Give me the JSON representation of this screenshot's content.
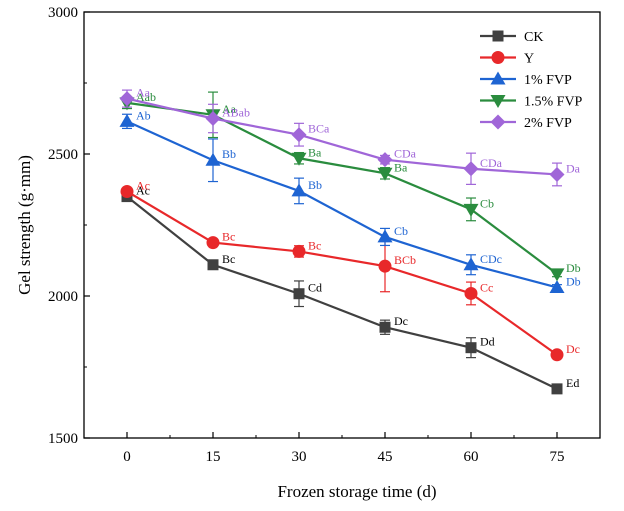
{
  "chart_data": {
    "type": "line",
    "title": "",
    "xlabel": "Frozen storage time (d)",
    "ylabel": "Gel strength (g·mm)",
    "x": [
      0,
      15,
      30,
      45,
      60,
      75
    ],
    "x_tick_labels": [
      "0",
      "15",
      "30",
      "45",
      "60",
      "75"
    ],
    "xlim": [
      -7.5,
      82.5
    ],
    "ylim": [
      1500,
      3000
    ],
    "y_ticks": [
      1500,
      2000,
      2500,
      3000
    ],
    "y_tick_labels": [
      "1500",
      "2000",
      "2500",
      "3000"
    ],
    "legend_position": "top-right",
    "grid": false,
    "series": [
      {
        "name": "CK",
        "color": "#404040",
        "marker": "square",
        "values": [
          2350,
          2110,
          2008,
          1890,
          1818,
          1673
        ],
        "errors": [
          10,
          15,
          45,
          25,
          35,
          10
        ],
        "labels": [
          "Ac",
          "Bc",
          "Cd",
          "Dc",
          "Dd",
          "Ed"
        ]
      },
      {
        "name": "Y",
        "color": "#e8282a",
        "marker": "circle",
        "values": [
          2368,
          2188,
          2157,
          2105,
          2009,
          1793
        ],
        "errors": [
          10,
          10,
          20,
          90,
          40,
          10
        ],
        "labels": [
          "Ac",
          "Bc",
          "Bc",
          "BCb",
          "Cc",
          "Dc"
        ]
      },
      {
        "name": "1% FVP",
        "color": "#1e64d2",
        "marker": "triangle-up",
        "values": [
          2615,
          2478,
          2370,
          2208,
          2110,
          2030
        ],
        "errors": [
          25,
          75,
          45,
          30,
          35,
          10
        ],
        "labels": [
          "Ab",
          "Bb",
          "Bb",
          "Cb",
          "CDc",
          "Db"
        ]
      },
      {
        "name": "1.5% FVP",
        "color": "#2a8c3e",
        "marker": "triangle-down",
        "values": [
          2680,
          2638,
          2485,
          2432,
          2305,
          2078
        ],
        "errors": [
          20,
          80,
          20,
          20,
          40,
          10
        ],
        "labels": [
          "Aab",
          "Aa",
          "Ba",
          "Ba",
          "Cb",
          "Db"
        ]
      },
      {
        "name": "2% FVP",
        "color": "#a066d8",
        "marker": "diamond",
        "values": [
          2695,
          2625,
          2568,
          2480,
          2448,
          2428
        ],
        "errors": [
          30,
          50,
          40,
          15,
          55,
          40
        ],
        "labels": [
          "Aa",
          "ABab",
          "BCa",
          "CDa",
          "CDa",
          "Da"
        ]
      }
    ]
  }
}
